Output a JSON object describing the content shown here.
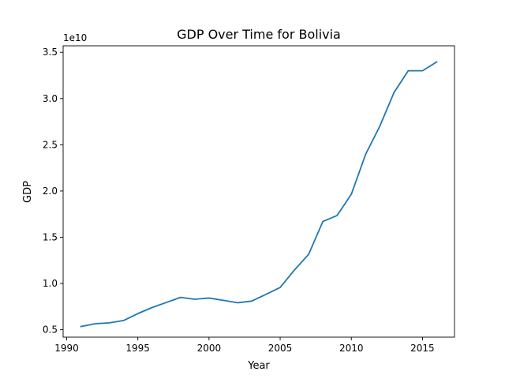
{
  "chart_data": {
    "type": "line",
    "title": "GDP Over Time for Bolivia",
    "xlabel": "Year",
    "ylabel": "GDP",
    "offset_text": "1e10",
    "xlim": [
      1989.75,
      2017.25
    ],
    "ylim": [
      0.42,
      3.57
    ],
    "xticks": [
      1990,
      1995,
      2000,
      2005,
      2010,
      2015
    ],
    "yticks": [
      0.5,
      1.0,
      1.5,
      2.0,
      2.5,
      3.0,
      3.5
    ],
    "grid": false,
    "series": [
      {
        "color": "#1f77b4",
        "x": [
          1991,
          1992,
          1993,
          1994,
          1995,
          1996,
          1997,
          1998,
          1999,
          2000,
          2001,
          2002,
          2003,
          2004,
          2005,
          2006,
          2007,
          2008,
          2009,
          2010,
          2011,
          2012,
          2013,
          2014,
          2015,
          2016
        ],
        "values": [
          0.535,
          0.565,
          0.575,
          0.6,
          0.675,
          0.74,
          0.795,
          0.85,
          0.83,
          0.843,
          0.818,
          0.792,
          0.81,
          0.883,
          0.957,
          1.145,
          1.315,
          1.67,
          1.735,
          1.965,
          2.395,
          2.7,
          3.065,
          3.3,
          3.3,
          3.395
        ]
      }
    ]
  }
}
